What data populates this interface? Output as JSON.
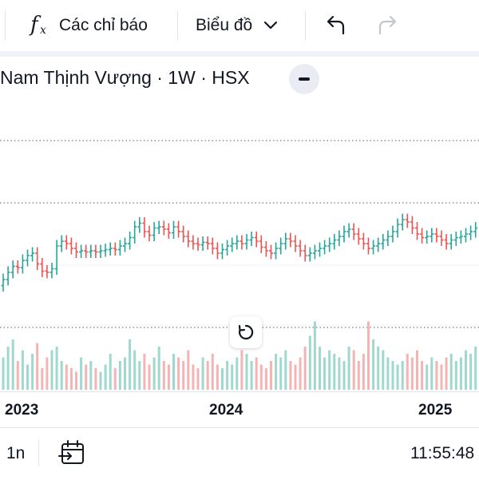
{
  "toolbar": {
    "indicators_label": "Các chỉ báo",
    "chart_type_label": "Biểu đồ"
  },
  "header": {
    "symbol_title": "Nam Thịnh Vượng · 1W · HSX"
  },
  "colors": {
    "up": "#26a69a",
    "down": "#ef5350",
    "up_volume": "#9fd8cf",
    "down_volume": "#f5b4b4",
    "dotted_line": "#787b86",
    "frame": "#e0e3eb"
  },
  "time_axis": {
    "years": [
      "2023",
      "2024",
      "2025"
    ]
  },
  "footer": {
    "range_label": "1n",
    "clock": "11:55:48"
  },
  "chart_data": {
    "type": "ohlc",
    "interval": "1W",
    "exchange": "HSX",
    "closes": [
      0.2,
      0.26,
      0.31,
      0.3,
      0.36,
      0.4,
      0.42,
      0.33,
      0.27,
      0.26,
      0.29,
      0.48,
      0.52,
      0.5,
      0.46,
      0.43,
      0.44,
      0.43,
      0.44,
      0.43,
      0.44,
      0.45,
      0.46,
      0.45,
      0.48,
      0.5,
      0.55,
      0.64,
      0.67,
      0.6,
      0.57,
      0.63,
      0.64,
      0.62,
      0.59,
      0.64,
      0.6,
      0.56,
      0.52,
      0.5,
      0.49,
      0.51,
      0.5,
      0.46,
      0.42,
      0.45,
      0.48,
      0.5,
      0.52,
      0.5,
      0.53,
      0.55,
      0.52,
      0.47,
      0.44,
      0.42,
      0.46,
      0.5,
      0.54,
      0.52,
      0.48,
      0.44,
      0.4,
      0.42,
      0.44,
      0.46,
      0.48,
      0.5,
      0.53,
      0.56,
      0.6,
      0.62,
      0.58,
      0.54,
      0.5,
      0.46,
      0.48,
      0.5,
      0.53,
      0.56,
      0.6,
      0.66,
      0.7,
      0.68,
      0.63,
      0.58,
      0.55,
      0.56,
      0.58,
      0.56,
      0.53,
      0.5,
      0.53,
      0.55,
      0.56,
      0.58,
      0.6,
      0.63,
      0.62
    ],
    "volumes": [
      0.45,
      0.6,
      0.7,
      0.4,
      0.55,
      0.35,
      0.5,
      0.65,
      0.3,
      0.45,
      0.55,
      0.6,
      0.4,
      0.35,
      0.3,
      0.25,
      0.45,
      0.35,
      0.4,
      0.3,
      0.25,
      0.35,
      0.5,
      0.3,
      0.4,
      0.45,
      0.7,
      0.55,
      0.4,
      0.5,
      0.35,
      0.45,
      0.6,
      0.4,
      0.35,
      0.5,
      0.45,
      0.4,
      0.55,
      0.35,
      0.3,
      0.45,
      0.4,
      0.5,
      0.35,
      0.3,
      0.4,
      0.35,
      0.45,
      0.55,
      0.5,
      0.4,
      0.45,
      0.35,
      0.3,
      0.4,
      0.5,
      0.45,
      0.55,
      0.4,
      0.35,
      0.45,
      0.6,
      0.75,
      0.95,
      0.6,
      0.45,
      0.55,
      0.5,
      0.45,
      0.4,
      0.6,
      0.55,
      0.4,
      0.5,
      0.95,
      0.7,
      0.6,
      0.55,
      0.45,
      0.4,
      0.35,
      0.4,
      0.5,
      0.45,
      0.55,
      0.4,
      0.35,
      0.45,
      0.4,
      0.35,
      0.45,
      0.5,
      0.4,
      0.45,
      0.55,
      0.5,
      0.6,
      0.65
    ]
  }
}
